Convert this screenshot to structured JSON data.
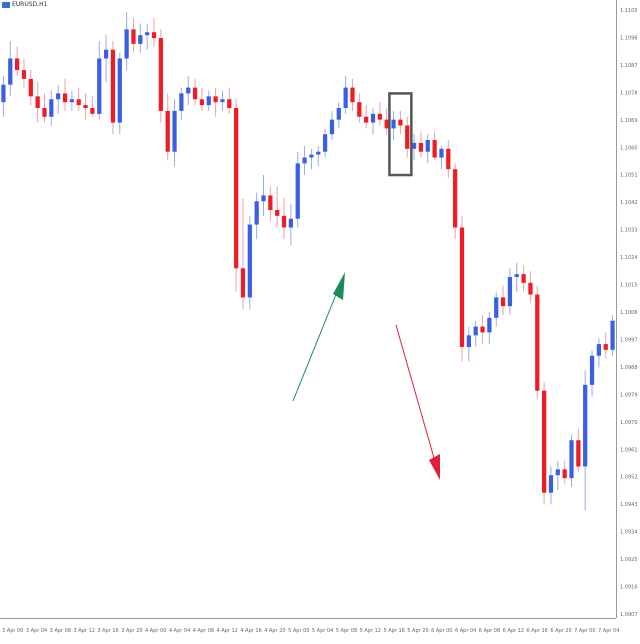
{
  "window": {
    "symbol_label": "EURUSD,H1"
  },
  "colors": {
    "bull": "#3a5fe0",
    "bear": "#ee1c25",
    "wick_bull": "#9aaaf0",
    "wick_bear": "#f0a0a6",
    "arrow_up": "#1e8a5a",
    "arrow_down": "#e0203a",
    "highlight_box": "#555555",
    "axis_text": "#666666"
  },
  "chart_data": {
    "type": "candlestick",
    "title": "",
    "xlabel": "",
    "ylabel": "",
    "ylim": [
      1.09,
      1.111
    ],
    "y_ticks": [
      "1.1105",
      "1.1096",
      "1.1087",
      "1.1078",
      "1.1069",
      "1.1060",
      "1.1051",
      "1.1042",
      "1.1033",
      "1.1024",
      "1.1015",
      "1.1006",
      "1.0997",
      "1.0988",
      "1.0979",
      "1.0970",
      "1.0961",
      "1.0952",
      "1.0943",
      "1.0934",
      "1.0925",
      "1.0916",
      "1.0907"
    ],
    "x_ticks": [
      "3 Apr 00",
      "3 Apr 04",
      "3 Apr 08",
      "3 Apr 12",
      "3 Apr 16",
      "3 Apr 20",
      "4 Apr 00",
      "4 Apr 04",
      "4 Apr 08",
      "4 Apr 12",
      "4 Apr 16",
      "4 Apr 20",
      "5 Apr 00",
      "5 Apr 04",
      "5 Apr 08",
      "5 Apr 12",
      "5 Apr 16",
      "5 Apr 20",
      "6 Apr 00",
      "6 Apr 04",
      "6 Apr 08",
      "6 Apr 12",
      "6 Apr 16",
      "6 Apr 20",
      "7 Apr 00",
      "7 Apr 04"
    ],
    "candles": [
      {
        "o": 1.1077,
        "h": 1.1086,
        "l": 1.1072,
        "c": 1.1083
      },
      {
        "o": 1.1083,
        "h": 1.1098,
        "l": 1.1079,
        "c": 1.1092
      },
      {
        "o": 1.1092,
        "h": 1.1096,
        "l": 1.1086,
        "c": 1.1088
      },
      {
        "o": 1.1088,
        "h": 1.1092,
        "l": 1.1082,
        "c": 1.1085
      },
      {
        "o": 1.1085,
        "h": 1.1088,
        "l": 1.1076,
        "c": 1.1079
      },
      {
        "o": 1.1079,
        "h": 1.1084,
        "l": 1.107,
        "c": 1.1075
      },
      {
        "o": 1.1075,
        "h": 1.108,
        "l": 1.107,
        "c": 1.1072
      },
      {
        "o": 1.1072,
        "h": 1.1081,
        "l": 1.1069,
        "c": 1.1078
      },
      {
        "o": 1.1078,
        "h": 1.1083,
        "l": 1.1073,
        "c": 1.108
      },
      {
        "o": 1.108,
        "h": 1.1085,
        "l": 1.1074,
        "c": 1.1077
      },
      {
        "o": 1.1077,
        "h": 1.1081,
        "l": 1.1074,
        "c": 1.1078
      },
      {
        "o": 1.1078,
        "h": 1.1082,
        "l": 1.1074,
        "c": 1.1076
      },
      {
        "o": 1.1076,
        "h": 1.108,
        "l": 1.1071,
        "c": 1.1075
      },
      {
        "o": 1.1075,
        "h": 1.1079,
        "l": 1.1072,
        "c": 1.1073
      },
      {
        "o": 1.1073,
        "h": 1.1098,
        "l": 1.1071,
        "c": 1.1092
      },
      {
        "o": 1.1092,
        "h": 1.11,
        "l": 1.1084,
        "c": 1.1095
      },
      {
        "o": 1.1095,
        "h": 1.1098,
        "l": 1.1066,
        "c": 1.107
      },
      {
        "o": 1.107,
        "h": 1.1094,
        "l": 1.1066,
        "c": 1.1092
      },
      {
        "o": 1.1092,
        "h": 1.1108,
        "l": 1.1088,
        "c": 1.1102
      },
      {
        "o": 1.1102,
        "h": 1.1106,
        "l": 1.1094,
        "c": 1.1097
      },
      {
        "o": 1.1097,
        "h": 1.1104,
        "l": 1.1094,
        "c": 1.11
      },
      {
        "o": 1.11,
        "h": 1.1104,
        "l": 1.1095,
        "c": 1.1101
      },
      {
        "o": 1.1101,
        "h": 1.1106,
        "l": 1.1096,
        "c": 1.1099
      },
      {
        "o": 1.1099,
        "h": 1.1102,
        "l": 1.107,
        "c": 1.1074
      },
      {
        "o": 1.1074,
        "h": 1.108,
        "l": 1.1057,
        "c": 1.106
      },
      {
        "o": 1.106,
        "h": 1.1078,
        "l": 1.1055,
        "c": 1.1074
      },
      {
        "o": 1.1074,
        "h": 1.1082,
        "l": 1.1071,
        "c": 1.108
      },
      {
        "o": 1.108,
        "h": 1.1086,
        "l": 1.1076,
        "c": 1.1082
      },
      {
        "o": 1.1082,
        "h": 1.1085,
        "l": 1.1076,
        "c": 1.1078
      },
      {
        "o": 1.1078,
        "h": 1.1082,
        "l": 1.1074,
        "c": 1.1076
      },
      {
        "o": 1.1076,
        "h": 1.1081,
        "l": 1.1074,
        "c": 1.1079
      },
      {
        "o": 1.1079,
        "h": 1.1082,
        "l": 1.1072,
        "c": 1.1077
      },
      {
        "o": 1.1077,
        "h": 1.1081,
        "l": 1.1074,
        "c": 1.1078
      },
      {
        "o": 1.1078,
        "h": 1.1082,
        "l": 1.1073,
        "c": 1.1075
      },
      {
        "o": 1.1075,
        "h": 1.1078,
        "l": 1.1012,
        "c": 1.102
      },
      {
        "o": 1.102,
        "h": 1.1044,
        "l": 1.1006,
        "c": 1.101
      },
      {
        "o": 1.101,
        "h": 1.1038,
        "l": 1.1006,
        "c": 1.1035
      },
      {
        "o": 1.1035,
        "h": 1.1046,
        "l": 1.103,
        "c": 1.1043
      },
      {
        "o": 1.1043,
        "h": 1.1052,
        "l": 1.1038,
        "c": 1.1045
      },
      {
        "o": 1.1045,
        "h": 1.1048,
        "l": 1.1036,
        "c": 1.104
      },
      {
        "o": 1.104,
        "h": 1.1048,
        "l": 1.1034,
        "c": 1.1038
      },
      {
        "o": 1.1038,
        "h": 1.1044,
        "l": 1.103,
        "c": 1.1034
      },
      {
        "o": 1.1034,
        "h": 1.1042,
        "l": 1.1028,
        "c": 1.1037
      },
      {
        "o": 1.1037,
        "h": 1.106,
        "l": 1.1034,
        "c": 1.1056
      },
      {
        "o": 1.1056,
        "h": 1.1062,
        "l": 1.1052,
        "c": 1.1058
      },
      {
        "o": 1.1058,
        "h": 1.1061,
        "l": 1.1054,
        "c": 1.1059
      },
      {
        "o": 1.1059,
        "h": 1.1062,
        "l": 1.1055,
        "c": 1.106
      },
      {
        "o": 1.106,
        "h": 1.1068,
        "l": 1.1058,
        "c": 1.1066
      },
      {
        "o": 1.1066,
        "h": 1.1074,
        "l": 1.1064,
        "c": 1.1071
      },
      {
        "o": 1.1071,
        "h": 1.1077,
        "l": 1.1068,
        "c": 1.1075
      },
      {
        "o": 1.1075,
        "h": 1.1086,
        "l": 1.1073,
        "c": 1.1082
      },
      {
        "o": 1.1082,
        "h": 1.1085,
        "l": 1.1074,
        "c": 1.1077
      },
      {
        "o": 1.1077,
        "h": 1.108,
        "l": 1.107,
        "c": 1.1072
      },
      {
        "o": 1.1072,
        "h": 1.1076,
        "l": 1.1068,
        "c": 1.107
      },
      {
        "o": 1.107,
        "h": 1.1075,
        "l": 1.1066,
        "c": 1.1073
      },
      {
        "o": 1.1073,
        "h": 1.1077,
        "l": 1.1069,
        "c": 1.1071
      },
      {
        "o": 1.1071,
        "h": 1.1075,
        "l": 1.1066,
        "c": 1.1068
      },
      {
        "o": 1.1068,
        "h": 1.1074,
        "l": 1.1064,
        "c": 1.1071
      },
      {
        "o": 1.1071,
        "h": 1.1074,
        "l": 1.1066,
        "c": 1.1069
      },
      {
        "o": 1.1069,
        "h": 1.1072,
        "l": 1.1058,
        "c": 1.1061
      },
      {
        "o": 1.1061,
        "h": 1.1066,
        "l": 1.1057,
        "c": 1.1063
      },
      {
        "o": 1.1063,
        "h": 1.1067,
        "l": 1.1058,
        "c": 1.106
      },
      {
        "o": 1.106,
        "h": 1.1066,
        "l": 1.1056,
        "c": 1.1064
      },
      {
        "o": 1.1064,
        "h": 1.1067,
        "l": 1.1057,
        "c": 1.1058
      },
      {
        "o": 1.1058,
        "h": 1.1062,
        "l": 1.1054,
        "c": 1.1061
      },
      {
        "o": 1.1061,
        "h": 1.1064,
        "l": 1.1051,
        "c": 1.1054
      },
      {
        "o": 1.1054,
        "h": 1.1056,
        "l": 1.103,
        "c": 1.1034
      },
      {
        "o": 1.1034,
        "h": 1.1038,
        "l": 1.0988,
        "c": 1.0993
      },
      {
        "o": 1.0993,
        "h": 1.1,
        "l": 1.0988,
        "c": 1.0997
      },
      {
        "o": 1.0997,
        "h": 1.1002,
        "l": 1.0993,
        "c": 1.1
      },
      {
        "o": 1.1,
        "h": 1.1004,
        "l": 1.0994,
        "c": 1.0998
      },
      {
        "o": 1.0998,
        "h": 1.1005,
        "l": 1.0994,
        "c": 1.1003
      },
      {
        "o": 1.1003,
        "h": 1.1012,
        "l": 1.1,
        "c": 1.101
      },
      {
        "o": 1.101,
        "h": 1.1014,
        "l": 1.1004,
        "c": 1.1007
      },
      {
        "o": 1.1007,
        "h": 1.102,
        "l": 1.1004,
        "c": 1.1017
      },
      {
        "o": 1.1017,
        "h": 1.1022,
        "l": 1.1012,
        "c": 1.1018
      },
      {
        "o": 1.1018,
        "h": 1.1021,
        "l": 1.1012,
        "c": 1.1015
      },
      {
        "o": 1.1015,
        "h": 1.1019,
        "l": 1.1008,
        "c": 1.1011
      },
      {
        "o": 1.1011,
        "h": 1.1014,
        "l": 1.0975,
        "c": 1.0978
      },
      {
        "o": 1.0978,
        "h": 1.0981,
        "l": 1.0939,
        "c": 1.0943
      },
      {
        "o": 1.0943,
        "h": 1.0952,
        "l": 1.0939,
        "c": 1.0949
      },
      {
        "o": 1.0949,
        "h": 1.0954,
        "l": 1.0944,
        "c": 1.0951
      },
      {
        "o": 1.0951,
        "h": 1.0954,
        "l": 1.0946,
        "c": 1.0948
      },
      {
        "o": 1.0948,
        "h": 1.0963,
        "l": 1.0945,
        "c": 1.0961
      },
      {
        "o": 1.0961,
        "h": 1.0965,
        "l": 1.095,
        "c": 1.0952
      },
      {
        "o": 1.0952,
        "h": 1.0985,
        "l": 1.0937,
        "c": 1.098
      },
      {
        "o": 1.098,
        "h": 1.0992,
        "l": 1.0976,
        "c": 1.099
      },
      {
        "o": 1.099,
        "h": 1.0996,
        "l": 1.0986,
        "c": 1.0994
      },
      {
        "o": 1.0994,
        "h": 1.0998,
        "l": 1.0989,
        "c": 1.0992
      },
      {
        "o": 1.0992,
        "h": 1.1004,
        "l": 1.099,
        "c": 1.1002
      }
    ],
    "annotations": [
      {
        "type": "box",
        "from_index": 57,
        "to_index": 59,
        "y0": 1.108,
        "y1": 1.1052
      },
      {
        "type": "arrow",
        "direction": "up",
        "color": "arrow_up"
      },
      {
        "type": "arrow",
        "direction": "down",
        "color": "arrow_down"
      }
    ],
    "grid": false,
    "legend": "none"
  }
}
